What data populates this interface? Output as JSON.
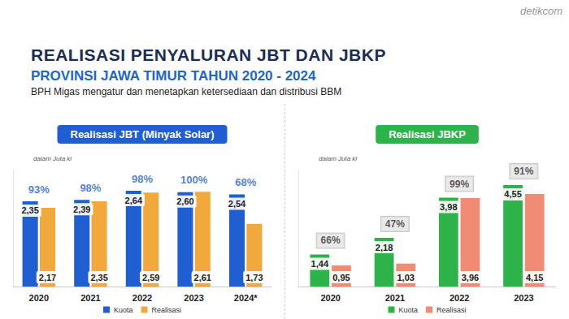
{
  "header": {
    "title": "REALISASI PENYALURAN JBT DAN JBKP",
    "subtitle": "PROVINSI JAWA TIMUR TAHUN 2020 - 2024",
    "description": "BPH Migas mengatur dan menetapkan ketersediaan dan distribusi BBM",
    "watermark": "detikcom"
  },
  "chart_data": [
    {
      "type": "bar",
      "title": "Realisasi JBT (Minyak Solar)",
      "subtitle": "dalam Juta kl",
      "categories": [
        "2020",
        "2021",
        "2022",
        "2023",
        "2024*"
      ],
      "series": [
        {
          "name": "Kuota",
          "color": "#1f5fd1",
          "values": [
            2.35,
            2.39,
            2.64,
            2.6,
            2.54
          ],
          "value_labels": [
            "2,35",
            "2,39",
            "2,64",
            "2,60",
            "2,54"
          ]
        },
        {
          "name": "Realisasi",
          "color": "#f2a93b",
          "values": [
            2.17,
            2.35,
            2.59,
            2.61,
            1.73
          ],
          "value_labels": [
            "2,17",
            "2,35",
            "2,59",
            "2,61",
            "1,73"
          ]
        }
      ],
      "annotations": [
        "93%",
        "98%",
        "98%",
        "100%",
        "68%"
      ],
      "ylim": [
        0,
        3.2
      ],
      "grid": false,
      "data_labels": true,
      "tick_labels": "x",
      "legend": "bottom"
    },
    {
      "type": "bar",
      "title": "Realisasi JBKP",
      "subtitle": "dalam Juta kl",
      "categories": [
        "2020",
        "2021",
        "2022",
        "2023"
      ],
      "series": [
        {
          "name": "Kuota",
          "color": "#2db34a",
          "values": [
            1.44,
            2.18,
            3.98,
            4.55
          ],
          "value_labels": [
            "1,44",
            "2,18",
            "3,98",
            "4,55"
          ]
        },
        {
          "name": "Realisasi",
          "color": "#f08c74",
          "values": [
            0.95,
            1.03,
            3.96,
            4.15
          ],
          "value_labels": [
            "0,95",
            "1,03",
            "3,96",
            "4,15"
          ]
        }
      ],
      "annotations": [
        "66%",
        "47%",
        "99%",
        "91%"
      ],
      "ylim": [
        0,
        5.2
      ],
      "grid": false,
      "data_labels": true,
      "tick_labels": "x",
      "legend": "bottom"
    }
  ]
}
